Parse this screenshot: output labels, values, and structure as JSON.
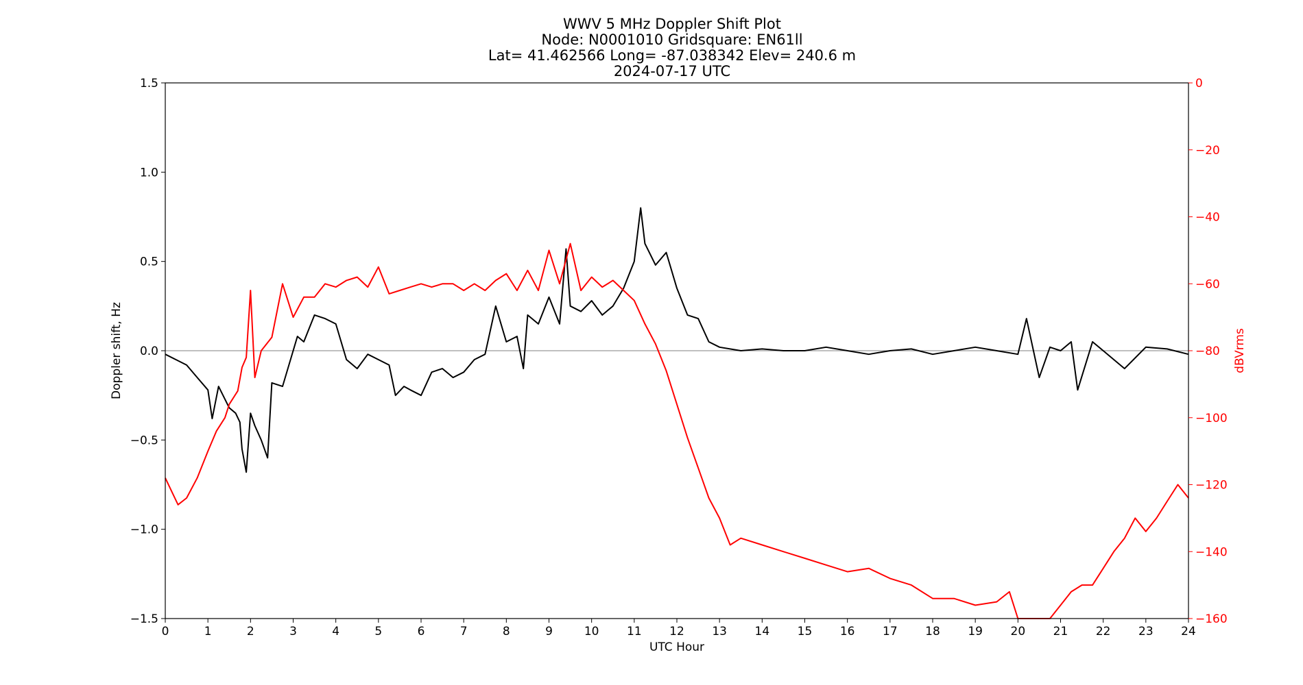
{
  "chart_data": {
    "type": "line",
    "title_lines": [
      "WWV 5 MHz Doppler Shift Plot",
      "Node:  N0001010      Gridsquare:  EN61ll",
      "Lat= 41.462566     Long= -87.038342     Elev= 240.6 m",
      "2024-07-17  UTC"
    ],
    "xlabel": "UTC Hour",
    "ylabel": "Doppler shift, Hz",
    "ylabel_right": "dBVrms",
    "xlim": [
      0,
      24
    ],
    "ylim": [
      -1.5,
      1.5
    ],
    "ylim_right": [
      -160,
      0
    ],
    "x_ticks": [
      "0",
      "1",
      "2",
      "3",
      "4",
      "5",
      "6",
      "7",
      "8",
      "9",
      "10",
      "11",
      "12",
      "13",
      "14",
      "15",
      "16",
      "17",
      "18",
      "19",
      "20",
      "21",
      "22",
      "23",
      "24"
    ],
    "y_ticks": [
      "1.5",
      "1.0",
      "0.5",
      "0.0",
      "−0.5",
      "−1.0",
      "−1.5"
    ],
    "y_ticks_right": [
      "0",
      "−20",
      "−40",
      "−60",
      "−80",
      "−100",
      "−120",
      "−140",
      "−160"
    ],
    "zero_line": 0.0,
    "grid": false,
    "colors": {
      "doppler": "#000000",
      "power": "#ff0000",
      "zero_line": "#999999",
      "right_axis": "#ff0000"
    },
    "series": [
      {
        "axis": "left",
        "x": [
          0,
          0.25,
          0.5,
          0.75,
          1.0,
          1.1,
          1.25,
          1.5,
          1.65,
          1.75,
          1.8,
          1.9,
          2.0,
          2.1,
          2.25,
          2.4,
          2.5,
          2.75,
          3.0,
          3.1,
          3.25,
          3.5,
          3.75,
          4.0,
          4.25,
          4.5,
          4.75,
          5.0,
          5.25,
          5.4,
          5.6,
          5.75,
          6.0,
          6.25,
          6.5,
          6.75,
          7.0,
          7.25,
          7.5,
          7.75,
          8.0,
          8.25,
          8.4,
          8.5,
          8.75,
          9.0,
          9.25,
          9.4,
          9.5,
          9.75,
          10.0,
          10.25,
          10.5,
          10.75,
          11.0,
          11.15,
          11.25,
          11.5,
          11.75,
          12.0,
          12.25,
          12.5,
          12.75,
          13.0,
          13.5,
          14.0,
          14.5,
          15.0,
          15.5,
          16.0,
          16.5,
          17.0,
          17.5,
          18.0,
          18.5,
          19.0,
          19.5,
          20.0,
          20.2,
          20.5,
          20.75,
          21.0,
          21.25,
          21.4,
          21.75,
          22.0,
          22.5,
          23.0,
          23.5,
          24.0
        ],
        "values": [
          -0.02,
          -0.05,
          -0.08,
          -0.15,
          -0.22,
          -0.38,
          -0.2,
          -0.32,
          -0.35,
          -0.4,
          -0.55,
          -0.68,
          -0.35,
          -0.42,
          -0.5,
          -0.6,
          -0.18,
          -0.2,
          0.0,
          0.08,
          0.05,
          0.2,
          0.18,
          0.15,
          -0.05,
          -0.1,
          -0.02,
          -0.05,
          -0.08,
          -0.25,
          -0.2,
          -0.22,
          -0.25,
          -0.12,
          -0.1,
          -0.15,
          -0.12,
          -0.05,
          -0.02,
          0.25,
          0.05,
          0.08,
          -0.1,
          0.2,
          0.15,
          0.3,
          0.15,
          0.57,
          0.25,
          0.22,
          0.28,
          0.2,
          0.25,
          0.35,
          0.5,
          0.8,
          0.6,
          0.48,
          0.55,
          0.35,
          0.2,
          0.18,
          0.05,
          0.02,
          0.0,
          0.01,
          0.0,
          0.0,
          0.02,
          0.0,
          -0.02,
          0.0,
          0.01,
          -0.02,
          0.0,
          0.02,
          0.0,
          -0.02,
          0.18,
          -0.15,
          0.02,
          0.0,
          0.05,
          -0.22,
          0.05,
          0.0,
          -0.1,
          0.02,
          0.01,
          -0.02
        ]
      },
      {
        "axis": "right",
        "x": [
          0,
          0.15,
          0.3,
          0.5,
          0.75,
          1.0,
          1.2,
          1.4,
          1.5,
          1.7,
          1.8,
          1.9,
          2.0,
          2.1,
          2.25,
          2.5,
          2.75,
          3.0,
          3.25,
          3.5,
          3.75,
          4.0,
          4.25,
          4.5,
          4.75,
          5.0,
          5.25,
          5.5,
          5.75,
          6.0,
          6.25,
          6.5,
          6.75,
          7.0,
          7.25,
          7.5,
          7.75,
          8.0,
          8.25,
          8.5,
          8.75,
          9.0,
          9.25,
          9.5,
          9.75,
          10.0,
          10.25,
          10.5,
          10.75,
          11.0,
          11.25,
          11.5,
          11.75,
          12.0,
          12.25,
          12.5,
          12.75,
          13.0,
          13.25,
          13.5,
          14.0,
          14.5,
          15.0,
          15.5,
          16.0,
          16.5,
          17.0,
          17.5,
          18.0,
          18.5,
          19.0,
          19.5,
          19.8,
          20.0,
          20.5,
          20.75,
          21.0,
          21.25,
          21.5,
          21.75,
          22.0,
          22.25,
          22.5,
          22.75,
          23.0,
          23.25,
          23.5,
          23.75,
          24.0
        ],
        "values": [
          -118,
          -122,
          -126,
          -124,
          -118,
          -110,
          -104,
          -100,
          -96,
          -92,
          -85,
          -82,
          -62,
          -88,
          -80,
          -76,
          -60,
          -70,
          -64,
          -64,
          -60,
          -61,
          -59,
          -58,
          -61,
          -55,
          -63,
          -62,
          -61,
          -60,
          -61,
          -60,
          -60,
          -62,
          -60,
          -62,
          -59,
          -57,
          -62,
          -56,
          -62,
          -50,
          -60,
          -48,
          -62,
          -58,
          -61,
          -59,
          -62,
          -65,
          -72,
          -78,
          -86,
          -96,
          -106,
          -115,
          -124,
          -130,
          -138,
          -136,
          -138,
          -140,
          -142,
          -144,
          -146,
          -145,
          -148,
          -150,
          -154,
          -154,
          -156,
          -155,
          -152,
          -160,
          -164,
          -160,
          -156,
          -152,
          -150,
          -150,
          -145,
          -140,
          -136,
          -130,
          -134,
          -130,
          -125,
          -120,
          -124
        ]
      }
    ]
  }
}
